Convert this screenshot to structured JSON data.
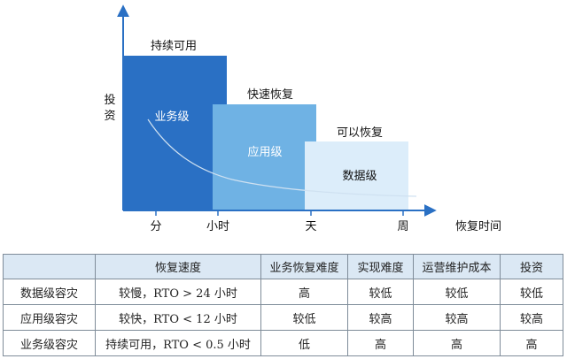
{
  "diagram": {
    "y_axis_label": [
      "投",
      "资"
    ],
    "x_axis_label": "恢复时间",
    "x_ticks": [
      "分",
      "小时",
      "天",
      "周"
    ],
    "tiers": [
      {
        "top_label": "持续可用",
        "inner_label": "业务级",
        "color": "#2a70c4"
      },
      {
        "top_label": "快速恢复",
        "inner_label": "应用级",
        "color": "#6fb2e4"
      },
      {
        "top_label": "可以恢复",
        "inner_label": "数据级",
        "color": "#dcedfa"
      }
    ]
  },
  "table": {
    "headers": [
      "",
      "恢复速度",
      "业务恢复难度",
      "实现难度",
      "运营维护成本",
      "投资"
    ],
    "rows": [
      [
        "数据级容灾",
        "较慢，RTO > 24 小时",
        "高",
        "较低",
        "较低",
        "较低"
      ],
      [
        "应用级容灾",
        "较快，RTO < 12 小时",
        "较低",
        "较高",
        "较高",
        "较高"
      ],
      [
        "业务级容灾",
        "持续可用，RTO < 0.5 小时",
        "低",
        "高",
        "高",
        "高"
      ]
    ]
  }
}
